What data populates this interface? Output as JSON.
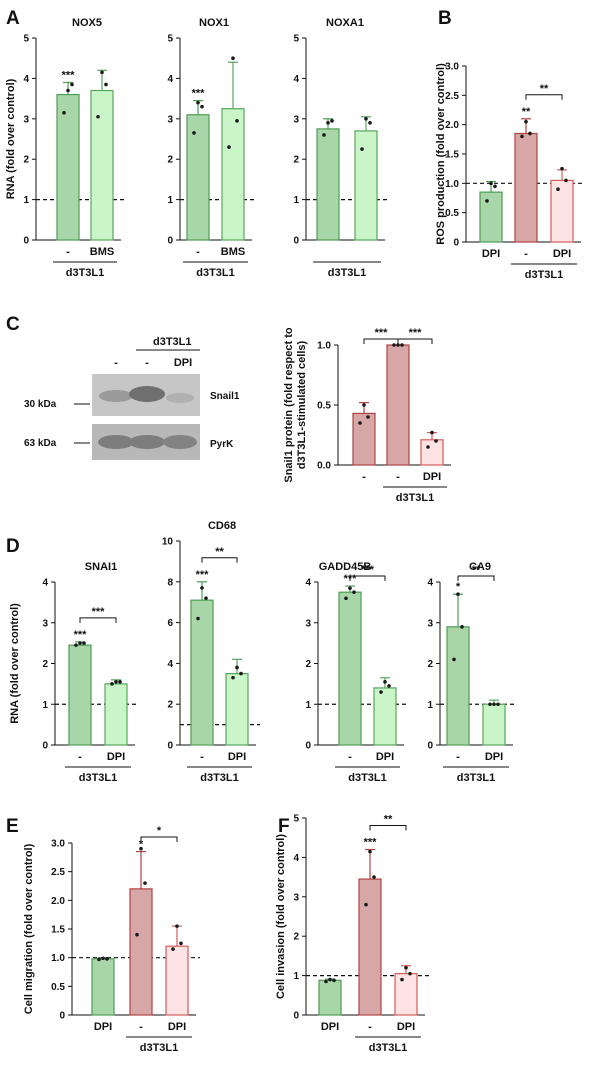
{
  "colors": {
    "ctrl_fill": "#a9d6a9",
    "ctrl_stroke": "#4d9c55",
    "lightgreen_fill": "#c9f5c9",
    "lightgreen_stroke": "#57a65c",
    "red_fill": "#d7a6a6",
    "red_stroke": "#b24242",
    "pink_fill": "#fde3e3",
    "pink_stroke": "#d85c5c",
    "dot": "#1a1a1a"
  },
  "panel_letters": {
    "A": "A",
    "B": "B",
    "C": "C",
    "D": "D",
    "E": "E",
    "F": "F"
  },
  "western_blot": {
    "group_label": "d3T3L1",
    "lane_labels": [
      "-",
      "-",
      "DPI"
    ],
    "band_labels": [
      "Snail1",
      "PyrK"
    ],
    "kda_labels": [
      "30 kDa",
      "63 kDa"
    ]
  },
  "chart_data": [
    {
      "id": "A1",
      "type": "bar",
      "title": "NOX5",
      "ylabel": "RNA (fold over control)",
      "ylim": [
        0,
        5
      ],
      "yticks": [
        "0",
        "1",
        "2",
        "3",
        "4",
        "5"
      ],
      "baseline": 1,
      "categories": [
        "-",
        "BMS"
      ],
      "group_label": "d3T3L1",
      "values": [
        3.6,
        3.7
      ],
      "errors": [
        0.3,
        0.5
      ],
      "points": [
        [
          3.15,
          3.85,
          3.7
        ],
        [
          3.05,
          3.85,
          4.15
        ]
      ],
      "colors": [
        "ctrl",
        "lightgreen"
      ],
      "annotations": [
        {
          "bar": 0,
          "text": "***"
        }
      ],
      "brackets": []
    },
    {
      "id": "A2",
      "type": "bar",
      "title": "NOX1",
      "ylabel": "",
      "ylim": [
        0,
        5
      ],
      "yticks": [
        "0",
        "1",
        "2",
        "3",
        "4",
        "5"
      ],
      "baseline": 1,
      "categories": [
        "-",
        "BMS"
      ],
      "group_label": "d3T3L1",
      "values": [
        3.1,
        3.25
      ],
      "errors": [
        0.35,
        1.15
      ],
      "points": [
        [
          2.65,
          3.3,
          3.4
        ],
        [
          2.3,
          2.95,
          4.5
        ]
      ],
      "colors": [
        "ctrl",
        "lightgreen"
      ],
      "annotations": [
        {
          "bar": 0,
          "text": "***"
        }
      ],
      "brackets": []
    },
    {
      "id": "A3",
      "type": "bar",
      "title": "NOXA1",
      "ylabel": "",
      "ylim": [
        0,
        5
      ],
      "yticks": [
        "0",
        "1",
        "2",
        "3",
        "4",
        "5"
      ],
      "baseline": 1,
      "categories": [
        "",
        ""
      ],
      "group_label": "d3T3L1",
      "values": [
        2.75,
        2.7
      ],
      "errors": [
        0.25,
        0.35
      ],
      "points": [
        [
          2.6,
          2.95,
          2.9
        ],
        [
          2.25,
          2.9,
          3.0
        ]
      ],
      "colors": [
        "ctrl",
        "lightgreen"
      ],
      "annotations": [],
      "brackets": []
    },
    {
      "id": "B",
      "type": "bar",
      "title": "",
      "ylabel": "ROS production  (fold over control)",
      "ylim": [
        0,
        3.0
      ],
      "yticks": [
        "0",
        "0.5",
        "1.0",
        "1.5",
        "2.0",
        "2.5",
        "3.0"
      ],
      "baseline": 1,
      "categories": [
        "DPI",
        "-",
        "DPI"
      ],
      "group_label": "d3T3L1",
      "group_span": [
        1,
        2
      ],
      "values": [
        0.85,
        1.85,
        1.05
      ],
      "errors": [
        0.18,
        0.25,
        0.18
      ],
      "points": [
        [
          0.7,
          0.95,
          1.0
        ],
        [
          1.8,
          1.85,
          2.05
        ],
        [
          0.9,
          1.05,
          1.25
        ]
      ],
      "colors": [
        "ctrl",
        "red",
        "pink"
      ],
      "annotations": [
        {
          "bar": 1,
          "text": "**"
        }
      ],
      "brackets": [
        {
          "from": 1,
          "to": 2,
          "text": "**"
        }
      ]
    },
    {
      "id": "C",
      "type": "bar",
      "title": "",
      "ylabel": "Snail1 protein (fold respect to d3T3L1-stimulated cells)",
      "ylim": [
        0,
        1.0
      ],
      "yticks": [
        "0.0",
        "0.5",
        "1.0"
      ],
      "baseline": null,
      "categories": [
        "-",
        "-",
        "DPI"
      ],
      "group_label": "d3T3L1",
      "group_span": [
        1,
        2
      ],
      "values": [
        0.43,
        1.0,
        0.21
      ],
      "errors": [
        0.09,
        0.0,
        0.06
      ],
      "points": [
        [
          0.35,
          0.4,
          0.5
        ],
        [
          1.0,
          1.0,
          1.0
        ],
        [
          0.15,
          0.2,
          0.27
        ]
      ],
      "colors": [
        "red",
        "red",
        "pink"
      ],
      "annotations": [],
      "brackets": [
        {
          "from": 0,
          "to": 1,
          "text": "***"
        },
        {
          "from": 1,
          "to": 2,
          "text": "***"
        }
      ]
    },
    {
      "id": "D1",
      "type": "bar",
      "title": "SNAI1",
      "ylabel": "RNA (fold over control)",
      "ylim": [
        0,
        4
      ],
      "yticks": [
        "0",
        "1",
        "2",
        "3",
        "4"
      ],
      "baseline": 1,
      "categories": [
        "-",
        "DPI"
      ],
      "group_label": "d3T3L1",
      "values": [
        2.45,
        1.5
      ],
      "errors": [
        0.08,
        0.1
      ],
      "points": [
        [
          2.45,
          2.5,
          2.5
        ],
        [
          1.5,
          1.55,
          1.55
        ]
      ],
      "colors": [
        "ctrl",
        "lightgreen"
      ],
      "annotations": [
        {
          "bar": 0,
          "text": "***"
        }
      ],
      "brackets": [
        {
          "from": 0,
          "to": 1,
          "text": "***"
        }
      ]
    },
    {
      "id": "D2",
      "type": "bar",
      "title": "CD68",
      "ylabel": "",
      "ylim": [
        0,
        10
      ],
      "yticks": [
        "0",
        "2",
        "4",
        "6",
        "8",
        "10"
      ],
      "baseline": 1,
      "categories": [
        "-",
        "DPI"
      ],
      "group_label": "d3T3L1",
      "values": [
        7.1,
        3.5
      ],
      "errors": [
        0.9,
        0.7
      ],
      "points": [
        [
          6.2,
          7.2,
          7.7
        ],
        [
          3.3,
          3.5,
          3.8
        ]
      ],
      "colors": [
        "ctrl",
        "lightgreen"
      ],
      "annotations": [
        {
          "bar": 0,
          "text": "***"
        }
      ],
      "brackets": [
        {
          "from": 0,
          "to": 1,
          "text": "**"
        }
      ]
    },
    {
      "id": "D3",
      "type": "bar",
      "title": "GADD45B",
      "ylabel": "",
      "ylim": [
        0,
        4
      ],
      "yticks": [
        "0",
        "1",
        "2",
        "3",
        "4"
      ],
      "baseline": 1,
      "categories": [
        "-",
        "DPI"
      ],
      "group_label": "d3T3L1",
      "values": [
        3.75,
        1.4
      ],
      "errors": [
        0.15,
        0.25
      ],
      "points": [
        [
          3.6,
          3.75,
          3.85
        ],
        [
          1.3,
          1.45,
          1.55
        ]
      ],
      "colors": [
        "ctrl",
        "lightgreen"
      ],
      "annotations": [
        {
          "bar": 0,
          "text": "***"
        }
      ],
      "brackets": [
        {
          "from": 0,
          "to": 1,
          "text": "***"
        }
      ]
    },
    {
      "id": "D4",
      "type": "bar",
      "title": "CA9",
      "ylabel": "",
      "ylim": [
        0,
        4
      ],
      "yticks": [
        "0",
        "1",
        "2",
        "3",
        "4"
      ],
      "baseline": 1,
      "categories": [
        "-",
        "DPI"
      ],
      "group_label": "d3T3L1",
      "values": [
        2.9,
        1.0
      ],
      "errors": [
        0.8,
        0.1
      ],
      "points": [
        [
          2.1,
          2.9,
          3.7
        ],
        [
          1.0,
          1.0,
          1.0
        ]
      ],
      "colors": [
        "ctrl",
        "lightgreen"
      ],
      "annotations": [
        {
          "bar": 0,
          "text": "*"
        }
      ],
      "brackets": [
        {
          "from": 0,
          "to": 1,
          "text": "**"
        }
      ]
    },
    {
      "id": "E",
      "type": "bar",
      "title": "",
      "ylabel": "Cell migration (fold over control)",
      "ylim": [
        0,
        3.0
      ],
      "yticks": [
        "0",
        "0.5",
        "1.0",
        "1.5",
        "2.0",
        "2.5",
        "3.0"
      ],
      "baseline": 1,
      "categories": [
        "DPI",
        "-",
        "DPI"
      ],
      "group_label": "d3T3L1",
      "group_span": [
        1,
        2
      ],
      "values": [
        0.98,
        2.2,
        1.2
      ],
      "errors": [
        0.02,
        0.65,
        0.35
      ],
      "points": [
        [
          0.97,
          0.98,
          0.99
        ],
        [
          1.4,
          2.3,
          2.9
        ],
        [
          1.15,
          1.25,
          1.55
        ]
      ],
      "colors": [
        "ctrl",
        "red",
        "pink"
      ],
      "annotations": [
        {
          "bar": 1,
          "text": "*"
        }
      ],
      "brackets": [
        {
          "from": 1,
          "to": 2,
          "text": "*"
        }
      ]
    },
    {
      "id": "F",
      "type": "bar",
      "title": "",
      "ylabel": "Cell invasion (fold over control)",
      "ylim": [
        0,
        5
      ],
      "yticks": [
        "0",
        "1",
        "2",
        "3",
        "4",
        "5"
      ],
      "baseline": 1,
      "categories": [
        "DPI",
        "-",
        "DPI"
      ],
      "group_label": "d3T3L1",
      "group_span": [
        1,
        2
      ],
      "values": [
        0.88,
        3.45,
        1.05
      ],
      "errors": [
        0.03,
        0.75,
        0.2
      ],
      "points": [
        [
          0.85,
          0.88,
          0.9
        ],
        [
          2.8,
          3.5,
          4.15
        ],
        [
          0.9,
          1.05,
          1.2
        ]
      ],
      "colors": [
        "ctrl",
        "red",
        "pink"
      ],
      "annotations": [
        {
          "bar": 1,
          "text": "***"
        }
      ],
      "brackets": [
        {
          "from": 1,
          "to": 2,
          "text": "**"
        }
      ]
    }
  ]
}
